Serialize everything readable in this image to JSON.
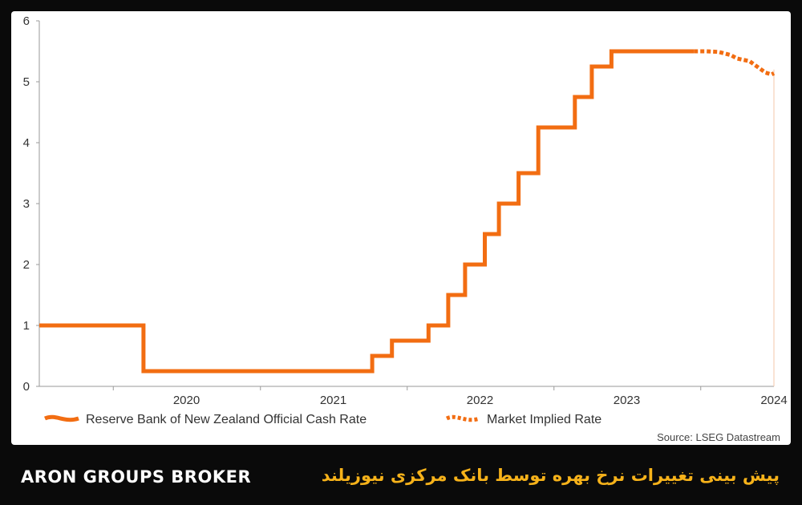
{
  "chart_data": {
    "type": "line",
    "title": "",
    "xlabel": "",
    "ylabel": "",
    "ylim": [
      0,
      6
    ],
    "xlim": [
      "2019-07-01",
      "2024-07-01"
    ],
    "yticks": [
      0,
      1,
      2,
      3,
      4,
      5,
      6
    ],
    "xticks": [
      "2020",
      "2021",
      "2022",
      "2023",
      "2024"
    ],
    "grid": false,
    "legend_position": "bottom-left",
    "series": [
      {
        "name": "Reserve Bank of New Zealand Official Cash Rate",
        "color": "#f26d12",
        "style": "solid-step",
        "points": [
          [
            "2019-07-01",
            1.0
          ],
          [
            "2020-03-16",
            1.0
          ],
          [
            "2020-03-16",
            0.25
          ],
          [
            "2021-10-06",
            0.25
          ],
          [
            "2021-10-06",
            0.5
          ],
          [
            "2021-11-24",
            0.5
          ],
          [
            "2021-11-24",
            0.75
          ],
          [
            "2022-02-23",
            0.75
          ],
          [
            "2022-02-23",
            1.0
          ],
          [
            "2022-04-13",
            1.0
          ],
          [
            "2022-04-13",
            1.5
          ],
          [
            "2022-05-25",
            1.5
          ],
          [
            "2022-05-25",
            2.0
          ],
          [
            "2022-07-13",
            2.0
          ],
          [
            "2022-07-13",
            2.5
          ],
          [
            "2022-08-17",
            2.5
          ],
          [
            "2022-08-17",
            3.0
          ],
          [
            "2022-10-05",
            3.0
          ],
          [
            "2022-10-05",
            3.5
          ],
          [
            "2022-11-23",
            3.5
          ],
          [
            "2022-11-23",
            4.25
          ],
          [
            "2023-02-22",
            4.25
          ],
          [
            "2023-02-22",
            4.75
          ],
          [
            "2023-04-05",
            4.75
          ],
          [
            "2023-04-05",
            5.25
          ],
          [
            "2023-05-24",
            5.25
          ],
          [
            "2023-05-24",
            5.5
          ],
          [
            "2023-12-15",
            5.5
          ]
        ]
      },
      {
        "name": "Market Implied Rate",
        "color": "#f26d12",
        "style": "dotted",
        "points": [
          [
            "2023-12-15",
            5.5
          ],
          [
            "2024-01-15",
            5.5
          ],
          [
            "2024-02-15",
            5.49
          ],
          [
            "2024-03-15",
            5.44
          ],
          [
            "2024-04-01",
            5.38
          ],
          [
            "2024-05-01",
            5.34
          ],
          [
            "2024-05-20",
            5.25
          ],
          [
            "2024-06-10",
            5.15
          ],
          [
            "2024-06-25",
            5.12
          ],
          [
            "2024-07-01",
            5.14
          ]
        ]
      }
    ]
  },
  "source": "Source: LSEG Datastream",
  "footer": {
    "brand": "ARON GROUPS BROKER",
    "caption": "پیش بینی تغییرات نرخ بهره توسط بانک مرکزی نیوزیلند"
  }
}
